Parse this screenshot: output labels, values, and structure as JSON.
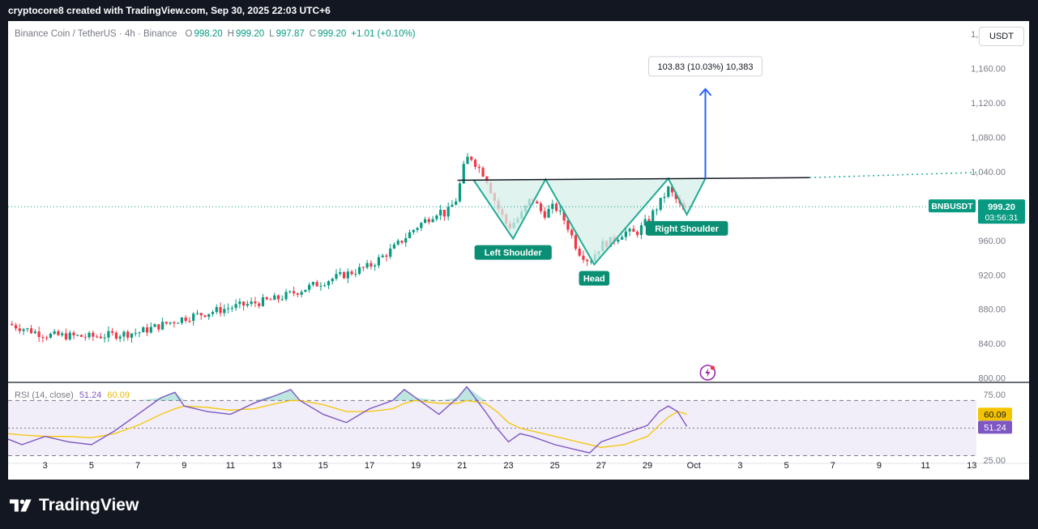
{
  "header": {
    "attribution": "cryptocore8 created with TradingView.com, Sep 30, 2025 22:03 UTC+6"
  },
  "legend": {
    "symbol": "Binance Coin / TetherUS · 4h · Binance",
    "open_label": "O",
    "open": "998.20",
    "high_label": "H",
    "high": "999.20",
    "low_label": "L",
    "low": "997.87",
    "close_label": "C",
    "close": "999.20",
    "change": "+1.01 (+0.10%)"
  },
  "toolbar": {
    "currency": "USDT"
  },
  "price_tag": {
    "ticker": "BNBUSDT",
    "price": "999.20",
    "countdown": "03:56:31"
  },
  "measure_label": "103.83 (10.03%) 10,383",
  "rsi_legend": {
    "name": "RSI (14, close)",
    "rsi": "51.24",
    "ma": "60.09"
  },
  "footer": {
    "brand": "TradingView"
  },
  "colors": {
    "up": "#089981",
    "down": "#f23645",
    "pattern": "#22ab94",
    "pattern_fill": "#d5efe9",
    "arrow": "#2962ff",
    "rsi": "#7e57c2",
    "rsi_ma": "#f5c400",
    "label_bg": "#0a8f74"
  },
  "chart_data": [
    {
      "type": "candlestick",
      "price_axis": {
        "ticks": [
          800,
          840,
          880,
          920,
          960,
          1000,
          1040,
          1080,
          1120,
          1160,
          1200
        ],
        "tick_labels": [
          "800.00",
          "840.00",
          "880.00",
          "920.00",
          "960.00",
          "",
          "1,040.00",
          "1,080.00",
          "1,120.00",
          "1,160.00",
          "1,200.00"
        ],
        "range": [
          795,
          1215
        ]
      },
      "date_axis": {
        "ticks": [
          "3",
          "5",
          "7",
          "9",
          "11",
          "13",
          "15",
          "17",
          "19",
          "21",
          "23",
          "25",
          "27",
          "29",
          "Oct",
          "3",
          "5",
          "7",
          "9",
          "11",
          "13"
        ],
        "tick_day_index": [
          3,
          5,
          7,
          9,
          11,
          13,
          15,
          17,
          19,
          21,
          23,
          25,
          27,
          29,
          31,
          33,
          35,
          37,
          39,
          41,
          43
        ],
        "range_days": [
          1.4,
          43.2
        ]
      },
      "close_path_days": [
        1.4,
        3,
        5,
        7,
        9,
        11,
        13,
        15,
        17,
        18,
        19,
        20,
        20.3,
        20.8,
        21,
        21.3,
        21.7,
        22,
        22.5,
        23,
        23.5,
        24,
        24.5,
        25,
        25.5,
        26,
        26.5,
        27,
        27.5,
        28,
        28.5,
        29,
        29.5,
        29.9,
        30.3,
        30.7
      ],
      "close_path_prices": [
        863,
        850,
        848,
        853,
        870,
        882,
        892,
        912,
        930,
        950,
        975,
        995,
        990,
        1010,
        1040,
        1060,
        1045,
        1035,
        1000,
        975,
        988,
        1010,
        990,
        1000,
        980,
        948,
        936,
        955,
        960,
        970,
        968,
        983,
        1002,
        1020,
        1005,
        988
      ],
      "neckline": {
        "start_day": 20.8,
        "end_day": 36,
        "start_price": 1030,
        "end_price": 1033,
        "dotted_to_day": 43.2,
        "dotted_to_price": 1039
      },
      "pattern_points": [
        {
          "day": 21.5,
          "price": 1030
        },
        {
          "day": 23.2,
          "price": 962,
          "label": "Left Shoulder"
        },
        {
          "day": 24.6,
          "price": 1031
        },
        {
          "day": 26.7,
          "price": 932,
          "label": "Head"
        },
        {
          "day": 29.9,
          "price": 1032
        },
        {
          "day": 30.7,
          "price": 990,
          "label": "Right Shoulder"
        },
        {
          "day": 31.5,
          "price": 1032
        }
      ],
      "target": {
        "day": 31.5,
        "from_price": 1032,
        "to_price": 1136
      },
      "current_price": 999.2
    },
    {
      "type": "line",
      "name": "RSI (14, close)",
      "range": [
        25,
        82
      ],
      "levels": [
        70,
        50,
        30
      ],
      "level_labels": [
        "75.00",
        "25.00"
      ],
      "x_days": [
        1.4,
        2,
        3,
        4,
        5,
        6,
        7,
        8,
        8.6,
        9,
        10,
        11,
        12,
        13,
        13.6,
        14,
        15,
        16,
        17,
        18,
        18.5,
        19,
        20,
        20.8,
        21.2,
        22,
        22.5,
        23,
        23.5,
        24,
        25,
        26,
        26.5,
        27,
        28,
        29,
        29.5,
        29.9,
        30.3,
        30.7
      ],
      "rsi": [
        42,
        38,
        44,
        40,
        38,
        48,
        60,
        72,
        76,
        66,
        62,
        60,
        68,
        74,
        78,
        70,
        60,
        54,
        64,
        70,
        78,
        72,
        60,
        72,
        80,
        62,
        50,
        40,
        46,
        44,
        38,
        34,
        32,
        40,
        46,
        52,
        62,
        66,
        62,
        51.24
      ],
      "ma": [
        46,
        45,
        44,
        44,
        43,
        46,
        52,
        60,
        64,
        66,
        65,
        63,
        64,
        68,
        70,
        70,
        67,
        62,
        62,
        64,
        68,
        70,
        68,
        68,
        70,
        68,
        62,
        54,
        50,
        48,
        44,
        40,
        38,
        36,
        38,
        44,
        52,
        58,
        62,
        60.09
      ]
    }
  ]
}
